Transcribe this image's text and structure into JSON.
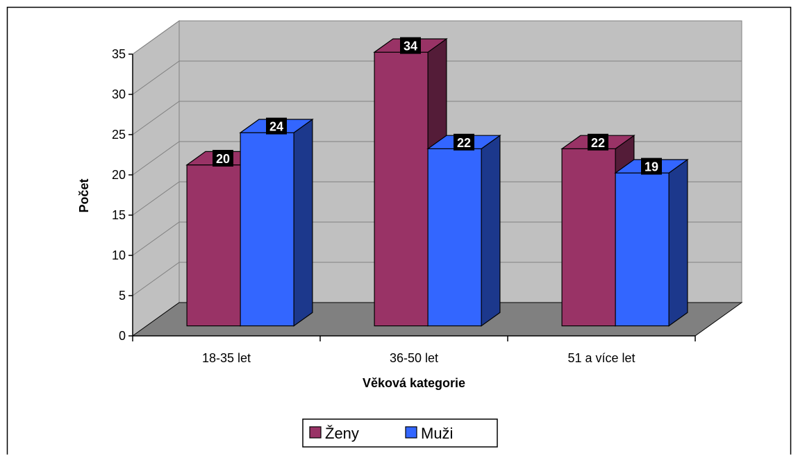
{
  "chart_data": {
    "type": "bar",
    "title": "",
    "xlabel": "Věková kategorie",
    "ylabel": "Počet",
    "ylim": [
      0,
      35
    ],
    "yticks": [
      0,
      5,
      10,
      15,
      20,
      25,
      30,
      35
    ],
    "categories": [
      "18-35 let",
      "36-50 let",
      "51 a více let"
    ],
    "series": [
      {
        "name": "Ženy",
        "values": [
          20,
          34,
          22
        ],
        "color": "#993366"
      },
      {
        "name": "Muži",
        "values": [
          24,
          22,
          19
        ],
        "color": "#3366FF"
      }
    ],
    "grid": true,
    "legend_position": "bottom",
    "data_labels": true,
    "style_3d": true
  }
}
